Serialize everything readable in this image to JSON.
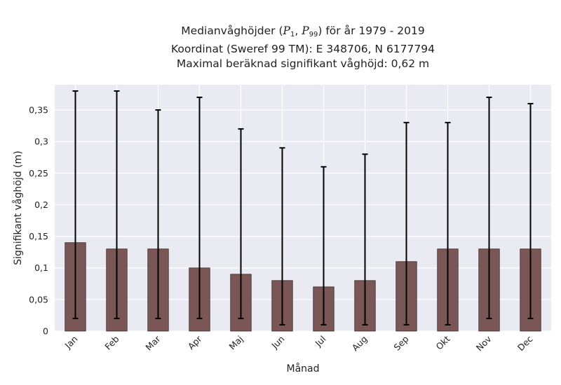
{
  "title": {
    "line1_prefix": "Medianvåghöjder (",
    "p_symbol": "P",
    "p1_sub": "1",
    "separator": ", ",
    "p99_sub": "99",
    "line1_suffix": ") för år 1979 - 2019",
    "line2": "Koordinat (Sweref 99 TM): E 348706, N 6177794",
    "line3": "Maximal beräknad signifikant våghöjd: 0,62 m"
  },
  "chart_data": {
    "type": "bar",
    "xlabel": "Månad",
    "ylabel": "Signifikant våghöjd (m)",
    "ylim": [
      0,
      0.39
    ],
    "yticks": [
      0,
      0.05,
      0.1,
      0.15,
      0.2,
      0.25,
      0.3,
      0.35
    ],
    "ytick_labels": [
      "0",
      "0,05",
      "0,1",
      "0,15",
      "0,2",
      "0,25",
      "0,3",
      "0,35"
    ],
    "categories": [
      "Jan",
      "Feb",
      "Mar",
      "Apr",
      "Maj",
      "Jun",
      "Jul",
      "Aug",
      "Sep",
      "Okt",
      "Nov",
      "Dec"
    ],
    "values": [
      0.14,
      0.13,
      0.13,
      0.1,
      0.09,
      0.08,
      0.07,
      0.08,
      0.11,
      0.13,
      0.13,
      0.13
    ],
    "p1": [
      0.02,
      0.02,
      0.02,
      0.02,
      0.02,
      0.01,
      0.01,
      0.01,
      0.01,
      0.01,
      0.02,
      0.02
    ],
    "p99": [
      0.38,
      0.38,
      0.35,
      0.37,
      0.32,
      0.29,
      0.26,
      0.28,
      0.33,
      0.33,
      0.37,
      0.36
    ],
    "grid": true,
    "colors": {
      "bar": "#7a5656",
      "bar_edge": "#3a2a2a",
      "background": "#eaeaf2",
      "grid": "#ffffff",
      "errorbar": "#000000"
    }
  }
}
